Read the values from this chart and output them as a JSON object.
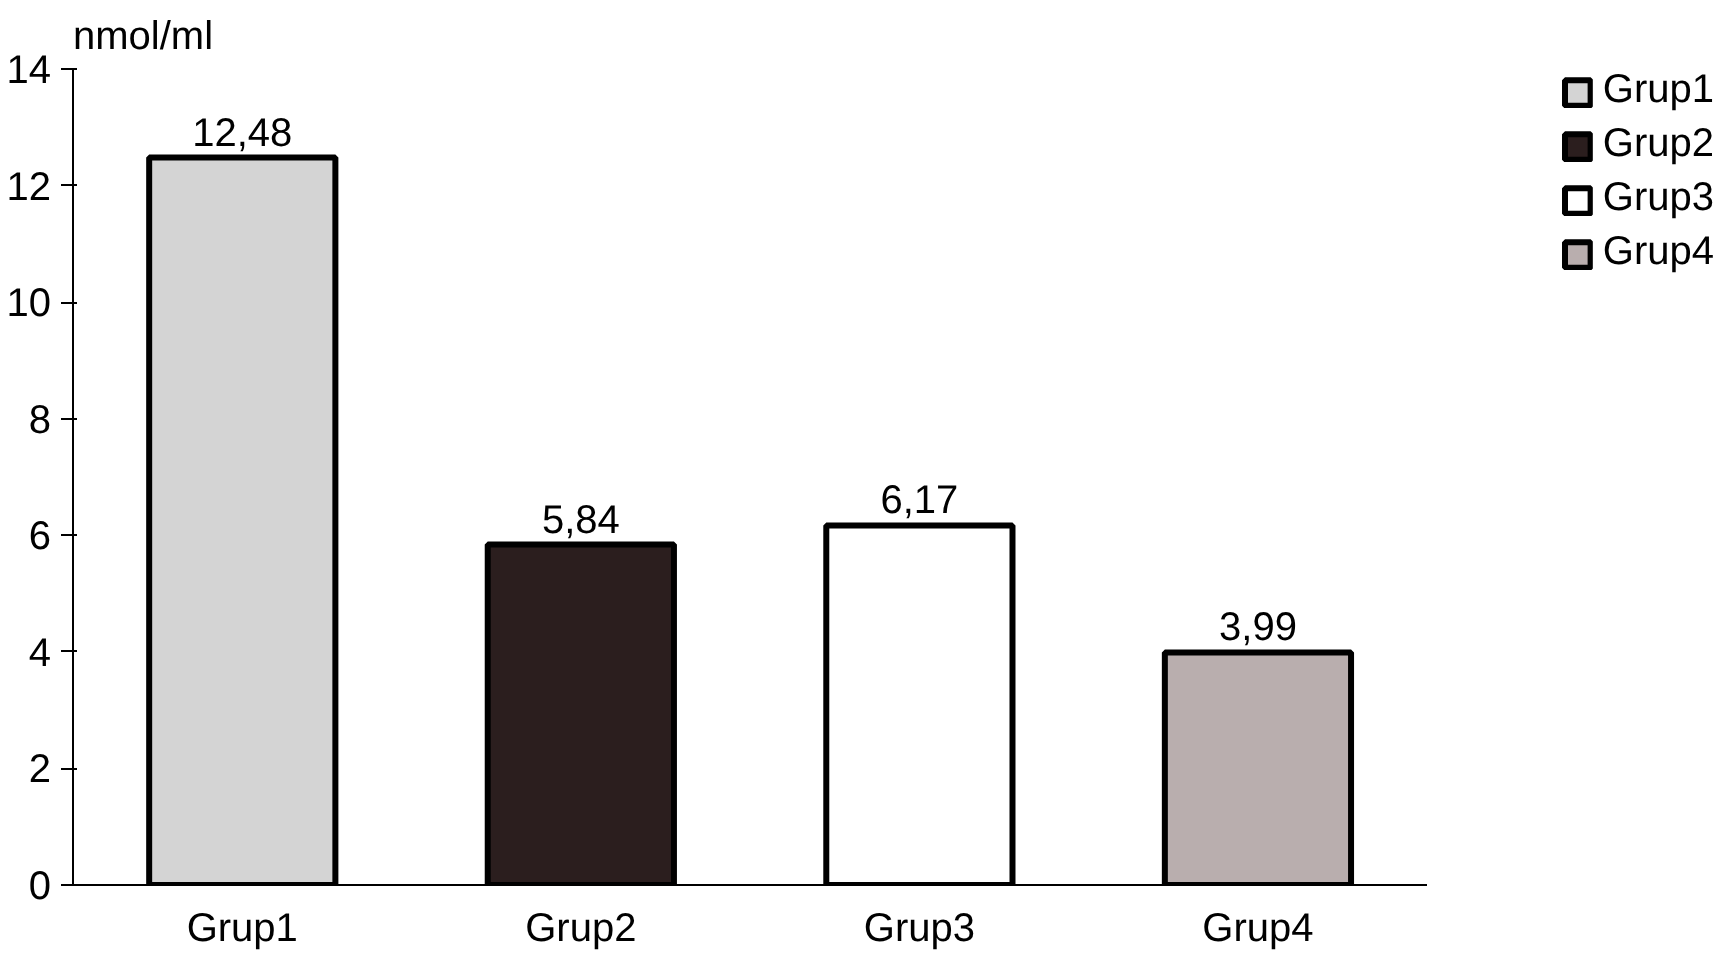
{
  "chart_data": {
    "type": "bar",
    "ylabel": "nmol/ml",
    "categories": [
      "Grup1",
      "Grup2",
      "Grup3",
      "Grup4"
    ],
    "series": [
      {
        "name": "Grup1",
        "color": "#d4d4d4",
        "values": [
          12.48,
          null,
          null,
          null
        ],
        "value_labels": [
          "12,48",
          null,
          null,
          null
        ]
      },
      {
        "name": "Grup2",
        "color": "#2b1e1e",
        "values": [
          null,
          5.84,
          null,
          null
        ],
        "value_labels": [
          null,
          "5,84",
          null,
          null
        ]
      },
      {
        "name": "Grup3",
        "color": "#ffffff",
        "values": [
          null,
          null,
          6.17,
          null
        ],
        "value_labels": [
          null,
          null,
          "6,17",
          null
        ]
      },
      {
        "name": "Grup4",
        "color": "#b9aeae",
        "values": [
          null,
          null,
          null,
          3.99
        ],
        "value_labels": [
          null,
          null,
          null,
          "3,99"
        ]
      }
    ],
    "ylim": [
      0,
      14
    ],
    "yticks": [
      0,
      2,
      4,
      6,
      8,
      10,
      12,
      14
    ],
    "grid": false,
    "legend": "top right"
  }
}
